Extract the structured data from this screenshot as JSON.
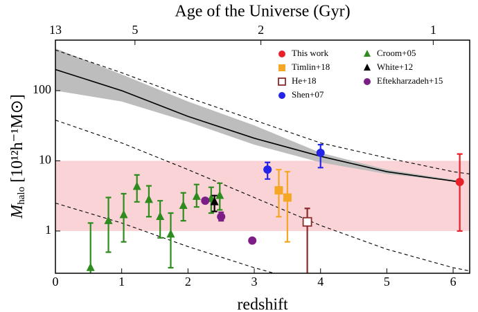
{
  "chart_data": {
    "type": "scatter",
    "x_label": "redshift",
    "x2_label": "Age of the Universe (Gyr)",
    "y_label": {
      "main": "M",
      "sub": "halo",
      "rest": " [10¹²h⁻¹M⊙]"
    },
    "xlim": [
      0,
      6.25
    ],
    "ylim": [
      0.25,
      525
    ],
    "log_y": true,
    "xticks": [
      0,
      1,
      2,
      3,
      4,
      5,
      6
    ],
    "yticks": [
      1,
      10,
      100
    ],
    "x2ticks": [
      {
        "value": 0,
        "label": "13"
      },
      {
        "value": 1.2,
        "label": "5"
      },
      {
        "value": 3.1,
        "label": "2"
      },
      {
        "value": 5.7,
        "label": "1"
      }
    ],
    "shade": {
      "low": 1,
      "high": 10,
      "color": "#f9d3d6"
    },
    "band": {
      "color": "#bdbdbd",
      "x": [
        0,
        1,
        2,
        3,
        4,
        5,
        6.1
      ],
      "low": [
        100,
        70,
        36,
        17,
        9.5,
        6.5,
        5
      ],
      "high": [
        400,
        170,
        70,
        32,
        13,
        7.5,
        5.2
      ]
    },
    "curves": [
      {
        "style": "solid",
        "x": [
          0,
          1,
          2,
          3,
          4,
          5,
          6.1
        ],
        "values": [
          200,
          100,
          43,
          21,
          11.6,
          7,
          5
        ]
      },
      {
        "style": "dashed",
        "x": [
          0,
          1,
          2,
          3,
          4,
          5,
          6,
          6.25
        ],
        "values": [
          380,
          180,
          80,
          38,
          18,
          11,
          7,
          6.5
        ]
      },
      {
        "style": "dashed",
        "x": [
          0,
          1,
          2,
          3,
          4,
          5,
          6,
          6.25
        ],
        "values": [
          38,
          18,
          7.5,
          3,
          1.2,
          0.55,
          0.3,
          0.27
        ]
      },
      {
        "style": "dashed",
        "x": [
          0,
          1,
          2,
          3,
          3.3
        ],
        "values": [
          2.5,
          1.3,
          0.6,
          0.3,
          0.25
        ]
      }
    ],
    "series": [
      {
        "name": "This work",
        "color": "#e8202a",
        "marker": "circle",
        "x": [
          6.1
        ],
        "values": [
          5
        ],
        "low": [
          1
        ],
        "high": [
          12.5
        ]
      },
      {
        "name": "Timlin+18",
        "color": "#f5a623",
        "marker": "square",
        "x": [
          3.37,
          3.5
        ],
        "values": [
          3.8,
          3.0
        ],
        "low": [
          1.6,
          0.7
        ],
        "high": [
          7.5,
          7
        ]
      },
      {
        "name": "He+18",
        "color": "#8b2a2a",
        "marker": "open-square",
        "x": [
          3.8
        ],
        "values": [
          1.35
        ],
        "low": [
          0.2
        ],
        "high": [
          2.1
        ]
      },
      {
        "name": "Shen+07",
        "color": "#2424e8",
        "marker": "circle",
        "x": [
          3.2,
          4.0
        ],
        "values": [
          7.5,
          13
        ],
        "low": [
          5.5,
          8
        ],
        "high": [
          9.5,
          17
        ]
      },
      {
        "name": "Croom+05",
        "color": "#2e8b1e",
        "marker": "triangle",
        "x": [
          0.53,
          0.8,
          1.03,
          1.23,
          1.41,
          1.58,
          1.74,
          1.93,
          2.13,
          2.35,
          2.48
        ],
        "values": [
          0.3,
          1.4,
          1.7,
          4.3,
          2.8,
          1.6,
          0.9,
          2.3,
          3.1,
          2.9,
          3.2
        ],
        "low": [
          0.2,
          0.5,
          0.7,
          2.6,
          1.6,
          0.8,
          0.3,
          1.4,
          2.2,
          1.8,
          2.0
        ],
        "high": [
          1.3,
          3,
          3.4,
          6.3,
          4.4,
          2.7,
          1.8,
          3.5,
          4.6,
          4.2,
          4.8
        ]
      },
      {
        "name": "White+12",
        "color": "#000000",
        "marker": "triangle",
        "x": [
          2.4
        ],
        "values": [
          2.6
        ],
        "low": [
          1.9
        ],
        "high": [
          3.2
        ]
      },
      {
        "name": "Eftekharzadeh+15",
        "color": "#7b1f86",
        "marker": "circle",
        "x": [
          2.26,
          2.5,
          2.97
        ],
        "values": [
          2.7,
          1.6,
          0.73
        ],
        "low": [
          2.7,
          1.4,
          0.73
        ],
        "high": [
          2.7,
          1.85,
          0.73
        ]
      }
    ]
  }
}
